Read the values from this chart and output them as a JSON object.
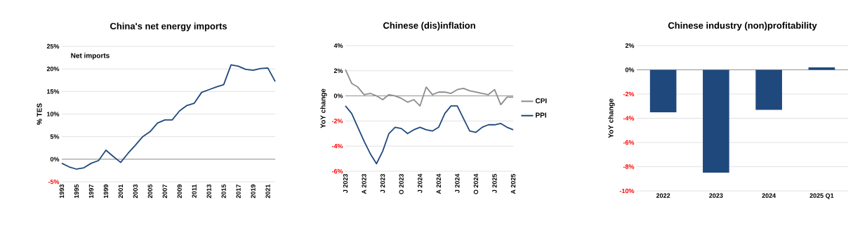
{
  "chart_data": [
    {
      "type": "line",
      "title": "China's net energy imports",
      "ylabel": "% TES",
      "color": "#1f497d",
      "x": [
        1993,
        1994,
        1995,
        1996,
        1997,
        1998,
        1999,
        2000,
        2001,
        2002,
        2003,
        2004,
        2005,
        2006,
        2007,
        2008,
        2009,
        2010,
        2011,
        2012,
        2013,
        2014,
        2015,
        2016,
        2017,
        2018,
        2019,
        2020,
        2021,
        2022
      ],
      "values": [
        -0.9,
        -1.7,
        -2.2,
        -1.9,
        -0.9,
        -0.3,
        2.0,
        0.6,
        -0.7,
        1.3,
        3.1,
        5.0,
        6.1,
        8.0,
        8.7,
        8.7,
        10.7,
        11.9,
        12.4,
        14.8,
        15.4,
        16.0,
        16.5,
        20.9,
        20.6,
        19.9,
        19.7,
        20.1,
        20.2,
        17.2
      ],
      "xlim": [
        1993,
        2022
      ],
      "xticks": [
        1993,
        1995,
        1997,
        1999,
        2001,
        2003,
        2005,
        2007,
        2009,
        2011,
        2013,
        2015,
        2017,
        2019,
        2021
      ],
      "ylim": [
        -5,
        25
      ],
      "yticks": [
        {
          "value": -5,
          "label": "-5%"
        },
        {
          "value": 0,
          "label": "0%"
        },
        {
          "value": 5,
          "label": "5%"
        },
        {
          "value": 10,
          "label": "10%"
        },
        {
          "value": 15,
          "label": "15%"
        },
        {
          "value": 20,
          "label": "20%"
        },
        {
          "value": 25,
          "label": "25%"
        }
      ],
      "grid": "y",
      "annotations": [
        "Net imports"
      ]
    },
    {
      "type": "line",
      "title": "Chinese (dis)inflation",
      "ylabel": "YoY change",
      "categories": [
        "J 2023",
        null,
        null,
        "A 2023",
        null,
        null,
        "J 2023",
        null,
        null,
        "O 2023",
        null,
        null,
        "J 2024",
        null,
        null,
        "A 2024",
        null,
        null,
        "J 2024",
        null,
        null,
        "O 2024",
        null,
        null,
        "J 2025",
        null,
        null,
        "A 2025"
      ],
      "series": [
        {
          "name": "CPI",
          "color": "#8c8c8c",
          "values": [
            2.1,
            1.0,
            0.7,
            0.1,
            0.2,
            0.0,
            -0.3,
            0.1,
            0.0,
            -0.2,
            -0.5,
            -0.3,
            -0.8,
            0.7,
            0.1,
            0.3,
            0.3,
            0.2,
            0.5,
            0.6,
            0.4,
            0.3,
            0.2,
            0.1,
            0.5,
            -0.7,
            -0.1,
            -0.1
          ]
        },
        {
          "name": "PPI",
          "color": "#1f497d",
          "values": [
            -0.8,
            -1.4,
            -2.5,
            -3.6,
            -4.6,
            -5.4,
            -4.4,
            -3.0,
            -2.5,
            -2.6,
            -3.0,
            -2.7,
            -2.5,
            -2.7,
            -2.8,
            -2.5,
            -1.4,
            -0.8,
            -0.8,
            -1.8,
            -2.8,
            -2.9,
            -2.5,
            -2.3,
            -2.3,
            -2.2,
            -2.5,
            -2.7
          ]
        }
      ],
      "ylim": [
        -6,
        4
      ],
      "yticks": [
        {
          "value": -6,
          "label": "-6%"
        },
        {
          "value": -4,
          "label": "-4%"
        },
        {
          "value": -2,
          "label": "-2%"
        },
        {
          "value": 0,
          "label": "0%"
        },
        {
          "value": 2,
          "label": "2%"
        },
        {
          "value": 4,
          "label": "4%"
        }
      ],
      "grid": "y",
      "legend": "right"
    },
    {
      "type": "bar",
      "title": "Chinese industry (non)profitability",
      "ylabel": "YoY change",
      "color": "#1f497d",
      "categories": [
        "2022",
        "2023",
        "2024",
        "2025 Q1"
      ],
      "values": [
        -3.5,
        -8.5,
        -3.3,
        0.2
      ],
      "ylim": [
        -10,
        2
      ],
      "yticks": [
        {
          "value": -10,
          "label": "-10%"
        },
        {
          "value": -8,
          "label": "-8%"
        },
        {
          "value": -6,
          "label": "-6%"
        },
        {
          "value": -4,
          "label": "-4%"
        },
        {
          "value": -2,
          "label": "-2%"
        },
        {
          "value": 0,
          "label": "0%"
        },
        {
          "value": 2,
          "label": "2%"
        }
      ],
      "grid": "y"
    }
  ]
}
